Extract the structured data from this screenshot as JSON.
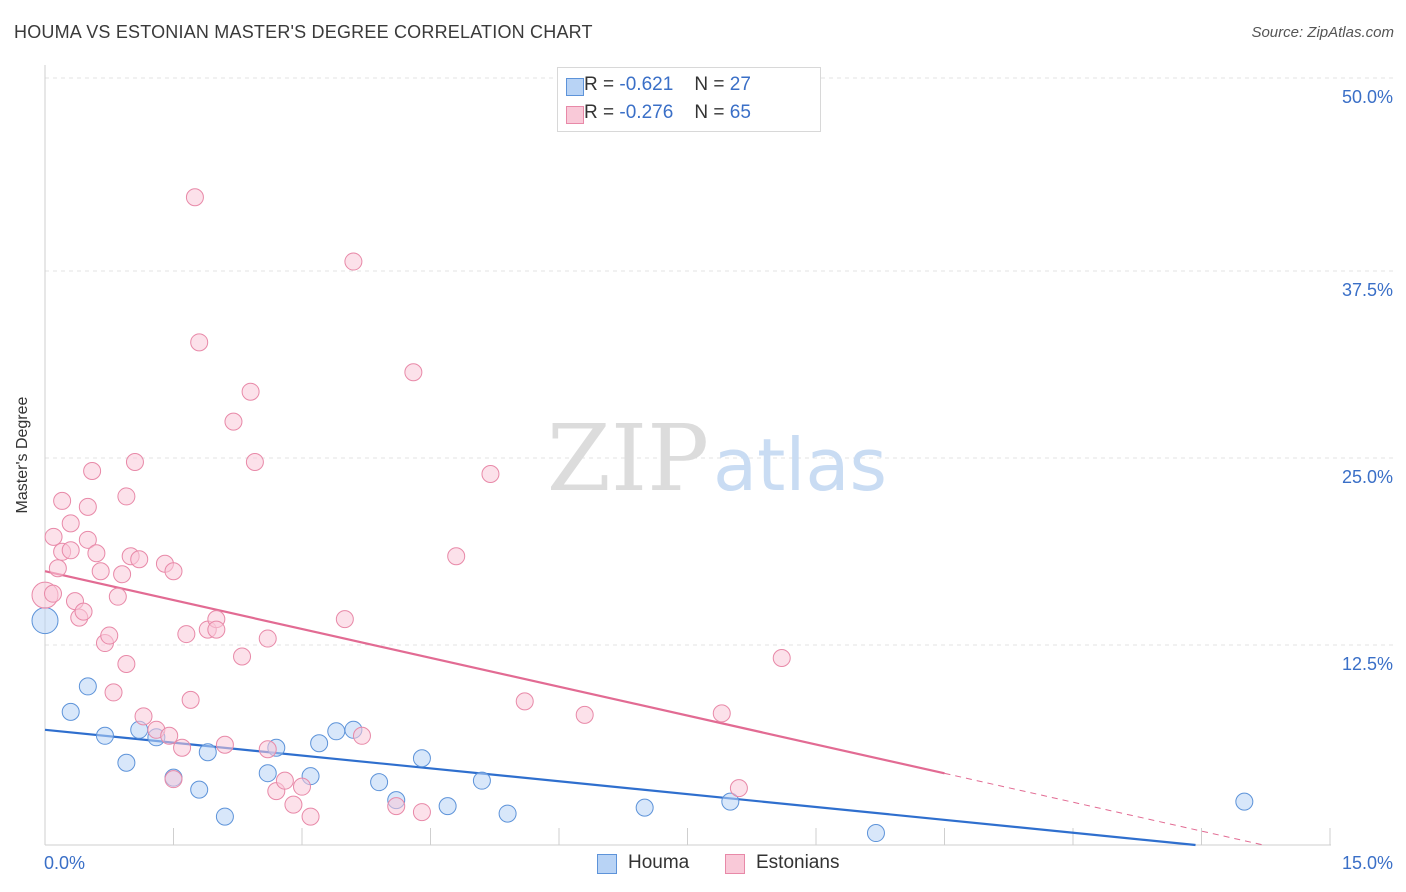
{
  "title": "HOUMA VS ESTONIAN MASTER'S DEGREE CORRELATION CHART",
  "source": "Source: ZipAtlas.com",
  "watermark": {
    "zip": "ZIP",
    "atlas": "atlas"
  },
  "legend": {
    "houma": {
      "r_label": "R =",
      "r_value": "-0.621",
      "n_label": "N =",
      "n_value": "27"
    },
    "estonians": {
      "r_label": "R =",
      "r_value": "-0.276",
      "n_label": "N =",
      "n_value": "65"
    }
  },
  "colors": {
    "houma_fill": "#b8d3f5",
    "houma_stroke": "#5d93d9",
    "houma_line": "#2f6fce",
    "estonians_fill": "#f9c9d8",
    "estonians_stroke": "#e889a8",
    "estonians_line": "#e26b93",
    "axis_text": "#3a6fc7",
    "grid": "#e3e3e3"
  },
  "chart_data": {
    "type": "scatter",
    "title": "HOUMA VS ESTONIAN MASTER'S DEGREE CORRELATION CHART",
    "xlabel": "",
    "ylabel": "Master's Degree",
    "xlim": [
      0,
      15
    ],
    "ylim": [
      0,
      50
    ],
    "x_tick_labels": [
      "0.0%",
      "15.0%"
    ],
    "y_ticks": [
      12.5,
      25.0,
      37.5,
      50.0
    ],
    "y_tick_labels": [
      "12.5%",
      "25.0%",
      "37.5%",
      "50.0%"
    ],
    "legend_position": "bottom-center",
    "series": [
      {
        "name": "Houma",
        "points": [
          [
            0.0,
            15.0
          ],
          [
            0.3,
            8.9
          ],
          [
            0.5,
            10.6
          ],
          [
            0.7,
            7.3
          ],
          [
            0.95,
            5.5
          ],
          [
            1.1,
            7.7
          ],
          [
            1.3,
            7.2
          ],
          [
            1.5,
            4.5
          ],
          [
            1.8,
            3.7
          ],
          [
            1.9,
            6.2
          ],
          [
            2.1,
            1.9
          ],
          [
            2.6,
            4.8
          ],
          [
            2.7,
            6.5
          ],
          [
            3.1,
            4.6
          ],
          [
            3.2,
            6.8
          ],
          [
            3.4,
            7.6
          ],
          [
            3.6,
            7.7
          ],
          [
            3.9,
            4.2
          ],
          [
            4.1,
            3.0
          ],
          [
            4.4,
            5.8
          ],
          [
            4.7,
            2.6
          ],
          [
            5.1,
            4.3
          ],
          [
            5.4,
            2.1
          ],
          [
            7.0,
            2.5
          ],
          [
            8.0,
            2.9
          ],
          [
            9.7,
            0.8
          ],
          [
            14.0,
            2.9
          ]
        ],
        "trend": {
          "x": [
            0.0,
            15.0
          ],
          "y": [
            7.7,
            -0.9
          ],
          "solid_until": 15.0
        }
      },
      {
        "name": "Estonians",
        "points": [
          [
            0.0,
            16.7
          ],
          [
            0.1,
            20.6
          ],
          [
            0.15,
            18.5
          ],
          [
            0.2,
            19.6
          ],
          [
            0.2,
            23.0
          ],
          [
            0.3,
            21.5
          ],
          [
            0.3,
            19.7
          ],
          [
            0.35,
            16.3
          ],
          [
            0.4,
            15.2
          ],
          [
            0.45,
            15.6
          ],
          [
            0.5,
            22.6
          ],
          [
            0.5,
            20.4
          ],
          [
            0.55,
            25.0
          ],
          [
            0.6,
            19.5
          ],
          [
            0.65,
            18.3
          ],
          [
            0.7,
            13.5
          ],
          [
            0.75,
            14.0
          ],
          [
            0.8,
            10.2
          ],
          [
            0.85,
            16.6
          ],
          [
            0.9,
            18.1
          ],
          [
            0.95,
            12.1
          ],
          [
            0.95,
            23.3
          ],
          [
            1.0,
            19.3
          ],
          [
            1.05,
            25.6
          ],
          [
            1.1,
            19.1
          ],
          [
            1.15,
            8.6
          ],
          [
            1.3,
            7.7
          ],
          [
            1.4,
            18.8
          ],
          [
            1.45,
            7.3
          ],
          [
            1.5,
            18.3
          ],
          [
            1.5,
            4.4
          ],
          [
            1.6,
            6.5
          ],
          [
            1.65,
            14.1
          ],
          [
            1.7,
            9.7
          ],
          [
            1.75,
            43.3
          ],
          [
            1.8,
            33.6
          ],
          [
            1.9,
            14.4
          ],
          [
            2.0,
            15.1
          ],
          [
            2.0,
            14.4
          ],
          [
            2.1,
            6.7
          ],
          [
            2.2,
            28.3
          ],
          [
            2.3,
            12.6
          ],
          [
            2.4,
            30.3
          ],
          [
            2.45,
            25.6
          ],
          [
            2.6,
            13.8
          ],
          [
            2.6,
            6.4
          ],
          [
            2.7,
            3.6
          ],
          [
            2.8,
            4.3
          ],
          [
            2.9,
            2.7
          ],
          [
            3.0,
            3.9
          ],
          [
            3.1,
            1.9
          ],
          [
            3.5,
            15.1
          ],
          [
            3.6,
            39.0
          ],
          [
            3.7,
            7.3
          ],
          [
            4.1,
            2.6
          ],
          [
            4.3,
            31.6
          ],
          [
            4.4,
            2.2
          ],
          [
            4.8,
            19.3
          ],
          [
            5.2,
            24.8
          ],
          [
            5.6,
            9.6
          ],
          [
            6.3,
            8.7
          ],
          [
            7.9,
            8.8
          ],
          [
            8.1,
            3.8
          ],
          [
            8.6,
            12.5
          ],
          [
            0.0,
            16.8
          ]
        ],
        "trend": {
          "x": [
            0.0,
            15.0
          ],
          "y": [
            18.3,
            -1.0
          ],
          "solid_until": 10.5
        }
      }
    ]
  }
}
